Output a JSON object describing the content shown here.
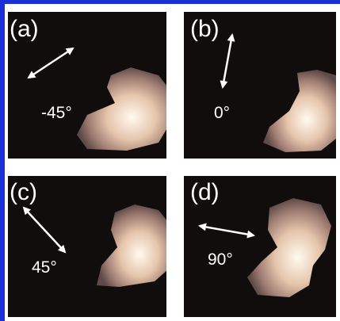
{
  "panels": [
    {
      "label": "(a)",
      "angle": "-45°"
    },
    {
      "label": "(b)",
      "angle": "0°"
    },
    {
      "label": "(c)",
      "angle": "45°"
    },
    {
      "label": "(d)",
      "angle": "90°"
    }
  ]
}
